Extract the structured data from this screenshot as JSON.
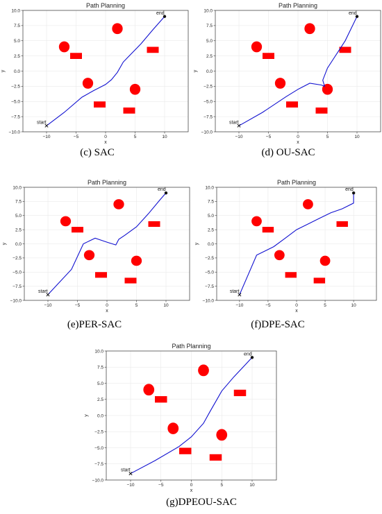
{
  "chart_data": [
    {
      "type": "line",
      "title": "Path Planning",
      "caption": "(c) SAC",
      "xlabel": "x",
      "ylabel": "y",
      "xlim": [
        -14,
        14
      ],
      "ylim": [
        -10,
        10
      ],
      "xticks": [
        -10,
        -5,
        0,
        5,
        10
      ],
      "yticks": [
        -10.0,
        -7.5,
        -5.0,
        -2.5,
        0.0,
        2.5,
        5.0,
        7.5,
        10.0
      ],
      "grid": true,
      "start": {
        "label": "start",
        "x": -10,
        "y": -9
      },
      "end": {
        "label": "end",
        "x": 10,
        "y": 9
      },
      "obstacles": {
        "circles": [
          {
            "x": -7,
            "y": 4,
            "r": 0.9
          },
          {
            "x": 2,
            "y": 7,
            "r": 0.9
          },
          {
            "x": -3,
            "y": -2,
            "r": 0.9
          },
          {
            "x": 5,
            "y": -3,
            "r": 0.9
          }
        ],
        "rects": [
          {
            "x": -5,
            "y": 2.5,
            "w": 2,
            "h": 1
          },
          {
            "x": 8,
            "y": 3.5,
            "w": 2,
            "h": 1
          },
          {
            "x": -1,
            "y": -5.5,
            "w": 2,
            "h": 1
          },
          {
            "x": 4,
            "y": -6.5,
            "w": 2,
            "h": 1
          }
        ]
      },
      "path": {
        "x": [
          -10,
          -7,
          -4,
          -2,
          0,
          1,
          2,
          3,
          4,
          6,
          8,
          10
        ],
        "y": [
          -9,
          -6.8,
          -4.3,
          -3.2,
          -2.2,
          -1.4,
          -0.2,
          1.5,
          2.5,
          4.5,
          6.8,
          9
        ]
      }
    },
    {
      "type": "line",
      "title": "Path Planning",
      "caption": "(d) OU-SAC",
      "xlabel": "x",
      "ylabel": "y",
      "xlim": [
        -14,
        14
      ],
      "ylim": [
        -10,
        10
      ],
      "xticks": [
        -10,
        -5,
        0,
        5,
        10
      ],
      "yticks": [
        -10.0,
        -7.5,
        -5.0,
        -2.5,
        0.0,
        2.5,
        5.0,
        7.5,
        10.0
      ],
      "grid": true,
      "start": {
        "label": "start",
        "x": -10,
        "y": -9
      },
      "end": {
        "label": "end",
        "x": 10,
        "y": 9
      },
      "obstacles": {
        "circles": [
          {
            "x": -7,
            "y": 4,
            "r": 0.9
          },
          {
            "x": 2,
            "y": 7,
            "r": 0.9
          },
          {
            "x": -3,
            "y": -2,
            "r": 0.9
          },
          {
            "x": 5,
            "y": -3,
            "r": 0.9
          }
        ],
        "rects": [
          {
            "x": -5,
            "y": 2.5,
            "w": 2,
            "h": 1
          },
          {
            "x": 8,
            "y": 3.5,
            "w": 2,
            "h": 1
          },
          {
            "x": -1,
            "y": -5.5,
            "w": 2,
            "h": 1
          },
          {
            "x": 4,
            "y": -6.5,
            "w": 2,
            "h": 1
          }
        ]
      },
      "path": {
        "x": [
          -10,
          -6,
          -2,
          0,
          2,
          4,
          4.5,
          4.2,
          5,
          6,
          7,
          8,
          9,
          10
        ],
        "y": [
          -9,
          -6.8,
          -4.2,
          -3,
          -2,
          -2.3,
          -2.5,
          -1.5,
          0.5,
          2,
          3.5,
          5,
          7,
          9
        ]
      }
    },
    {
      "type": "line",
      "title": "Path Planning",
      "caption": "(e)PER-SAC",
      "xlabel": "x",
      "ylabel": "y",
      "xlim": [
        -14,
        14
      ],
      "ylim": [
        -10,
        10
      ],
      "xticks": [
        -10,
        -5,
        0,
        5,
        10
      ],
      "yticks": [
        -10.0,
        -7.5,
        -5.0,
        -2.5,
        0.0,
        2.5,
        5.0,
        7.5,
        10.0
      ],
      "grid": true,
      "start": {
        "label": "start",
        "x": -10,
        "y": -9
      },
      "end": {
        "label": "end",
        "x": 10,
        "y": 9
      },
      "obstacles": {
        "circles": [
          {
            "x": -7,
            "y": 4,
            "r": 0.9
          },
          {
            "x": 2,
            "y": 7,
            "r": 0.9
          },
          {
            "x": -3,
            "y": -2,
            "r": 0.9
          },
          {
            "x": 5,
            "y": -3,
            "r": 0.9
          }
        ],
        "rects": [
          {
            "x": -5,
            "y": 2.5,
            "w": 2,
            "h": 1
          },
          {
            "x": 8,
            "y": 3.5,
            "w": 2,
            "h": 1
          },
          {
            "x": -1,
            "y": -5.5,
            "w": 2,
            "h": 1
          },
          {
            "x": 4,
            "y": -6.5,
            "w": 2,
            "h": 1
          }
        ]
      },
      "path": {
        "x": [
          -10,
          -6,
          -4,
          -2,
          0,
          1.5,
          2,
          3,
          5,
          7,
          9,
          10
        ],
        "y": [
          -9,
          -4.5,
          0,
          1,
          0.3,
          -0.2,
          0.8,
          1.5,
          3,
          5.3,
          7.8,
          9
        ]
      }
    },
    {
      "type": "line",
      "title": "Path Planning",
      "caption": "(f)DPE-SAC",
      "xlabel": "x",
      "ylabel": "y",
      "xlim": [
        -14,
        14
      ],
      "ylim": [
        -10,
        10
      ],
      "xticks": [
        -10,
        -5,
        0,
        5,
        10
      ],
      "yticks": [
        -10.0,
        -7.5,
        -5.0,
        -2.5,
        0.0,
        2.5,
        5.0,
        7.5,
        10.0
      ],
      "grid": true,
      "start": {
        "label": "start",
        "x": -10,
        "y": -9
      },
      "end": {
        "label": "end",
        "x": 10,
        "y": 9
      },
      "obstacles": {
        "circles": [
          {
            "x": -7,
            "y": 4,
            "r": 0.9
          },
          {
            "x": 2,
            "y": 7,
            "r": 0.9
          },
          {
            "x": -3,
            "y": -2,
            "r": 0.9
          },
          {
            "x": 5,
            "y": -3,
            "r": 0.9
          }
        ],
        "rects": [
          {
            "x": -5,
            "y": 2.5,
            "w": 2,
            "h": 1
          },
          {
            "x": 8,
            "y": 3.5,
            "w": 2,
            "h": 1
          },
          {
            "x": -1,
            "y": -5.5,
            "w": 2,
            "h": 1
          },
          {
            "x": 4,
            "y": -6.5,
            "w": 2,
            "h": 1
          }
        ]
      },
      "path": {
        "x": [
          -10,
          -7,
          -4,
          -2,
          0,
          2,
          4,
          6,
          8,
          10,
          10
        ],
        "y": [
          -9,
          -2,
          -0.5,
          1,
          2.5,
          3.5,
          4.5,
          5.5,
          6.2,
          7.2,
          9
        ]
      }
    },
    {
      "type": "line",
      "title": "Path Planning",
      "caption": "(g)DPEOU-SAC",
      "xlabel": "x",
      "ylabel": "y",
      "xlim": [
        -14,
        14
      ],
      "ylim": [
        -10,
        10
      ],
      "xticks": [
        -10,
        -5,
        0,
        5,
        10
      ],
      "yticks": [
        -10.0,
        -7.5,
        -5.0,
        -2.5,
        0.0,
        2.5,
        5.0,
        7.5,
        10.0
      ],
      "grid": true,
      "start": {
        "label": "start",
        "x": -10,
        "y": -9
      },
      "end": {
        "label": "end",
        "x": 10,
        "y": 9
      },
      "obstacles": {
        "circles": [
          {
            "x": -7,
            "y": 4,
            "r": 0.9
          },
          {
            "x": 2,
            "y": 7,
            "r": 0.9
          },
          {
            "x": -3,
            "y": -2,
            "r": 0.9
          },
          {
            "x": 5,
            "y": -3,
            "r": 0.9
          }
        ],
        "rects": [
          {
            "x": -5,
            "y": 2.5,
            "w": 2,
            "h": 1
          },
          {
            "x": 8,
            "y": 3.5,
            "w": 2,
            "h": 1
          },
          {
            "x": -1,
            "y": -5.5,
            "w": 2,
            "h": 1
          },
          {
            "x": 4,
            "y": -6.5,
            "w": 2,
            "h": 1
          }
        ]
      },
      "path": {
        "x": [
          -10,
          -6,
          -2,
          0,
          2,
          2.3,
          3,
          5,
          7,
          9,
          10
        ],
        "y": [
          -9,
          -7,
          -4.8,
          -3.3,
          -1.2,
          -0.7,
          0.5,
          3.8,
          6,
          8,
          9
        ]
      }
    }
  ]
}
